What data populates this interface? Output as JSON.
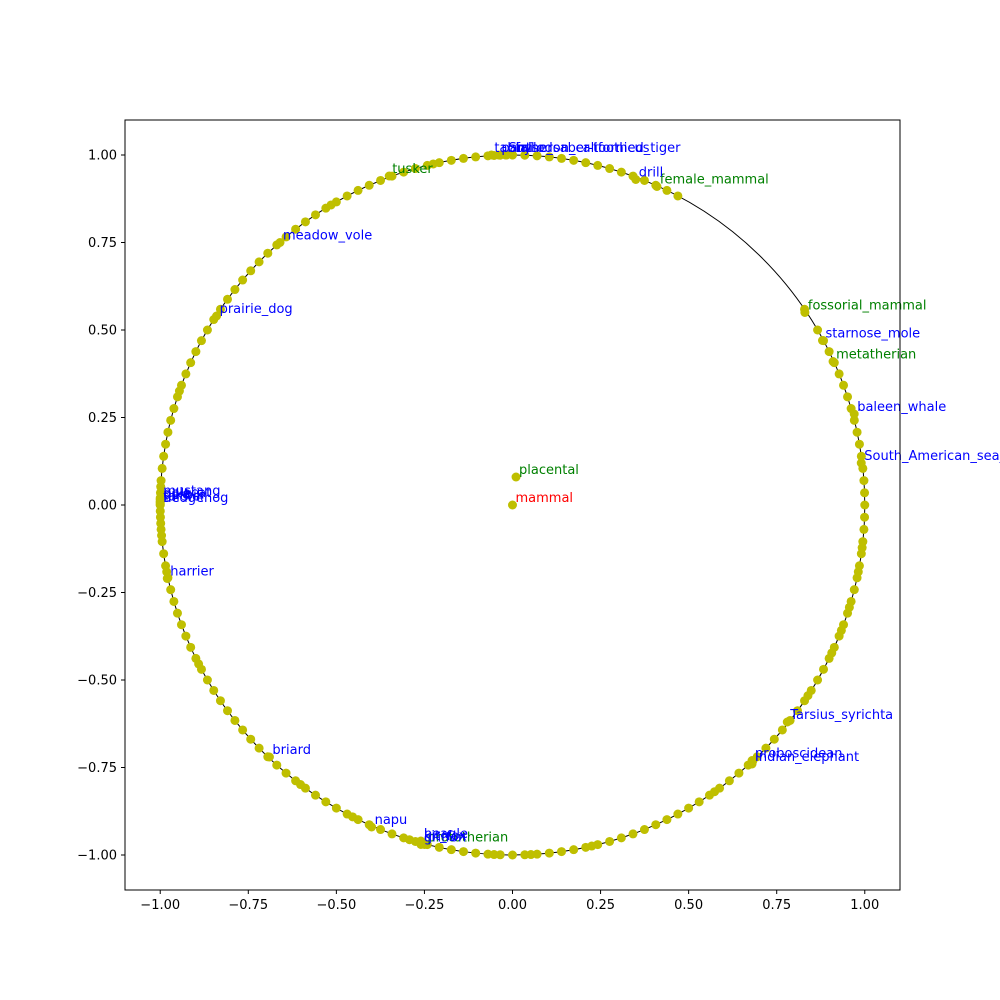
{
  "chart_data": {
    "type": "scatter",
    "title": "",
    "xlabel": "",
    "ylabel": "",
    "xlim": [
      -1.1,
      1.1
    ],
    "ylim": [
      -1.1,
      1.1
    ],
    "grid": false,
    "unit_circle": true,
    "point_color": "#bfbf00",
    "circle_color": "#000000",
    "xticks": [
      "−1.00",
      "−0.75",
      "−0.50",
      "−0.25",
      "0.00",
      "0.25",
      "0.50",
      "0.75",
      "1.00"
    ],
    "yticks": [
      "−1.00",
      "−0.75",
      "−0.50",
      "−0.25",
      "0.00",
      "0.25",
      "0.50",
      "0.75",
      "1.00"
    ],
    "xtick_values": [
      -1.0,
      -0.75,
      -0.5,
      -0.25,
      0.0,
      0.25,
      0.5,
      0.75,
      1.0
    ],
    "ytick_values": [
      -1.0,
      -0.75,
      -0.5,
      -0.25,
      0.0,
      0.25,
      0.5,
      0.75,
      1.0
    ],
    "scatter_angles_deg": [
      92,
      94,
      96,
      98,
      100,
      102,
      104,
      106,
      108,
      110,
      112,
      114,
      116,
      118,
      120,
      122,
      124,
      126,
      128,
      130,
      132,
      134,
      136,
      138,
      140,
      142,
      144,
      146,
      148,
      150,
      152,
      154,
      156,
      158,
      160,
      162,
      164,
      166,
      168,
      170,
      172,
      174,
      176,
      178,
      180,
      182,
      184,
      186,
      188,
      190,
      192,
      194,
      196,
      198,
      200,
      202,
      204,
      206,
      208,
      210,
      212,
      214,
      216,
      218,
      220,
      222,
      224,
      226,
      228,
      230,
      232,
      234,
      236,
      238,
      240,
      242,
      244,
      246,
      248,
      250,
      252,
      254,
      256,
      258,
      260,
      262,
      264,
      266,
      268,
      270,
      272,
      274,
      276,
      278,
      280,
      282,
      284,
      286,
      288,
      290,
      292,
      294,
      296,
      298,
      300,
      302,
      304,
      306,
      308,
      310,
      312,
      314,
      316,
      318,
      320,
      322,
      324,
      326,
      328,
      330,
      332,
      334,
      336,
      338,
      340,
      342,
      344,
      346,
      348,
      350,
      352,
      354,
      356,
      358,
      0,
      2,
      4,
      6,
      8,
      10,
      12,
      14,
      16,
      18,
      20,
      22,
      24,
      26,
      28,
      30,
      34,
      62,
      64,
      66,
      68,
      70,
      72,
      74,
      76,
      78,
      80,
      82,
      84,
      86,
      88,
      90,
      91,
      93,
      103,
      121,
      161,
      177,
      179,
      181,
      183,
      185,
      191,
      207,
      233,
      243,
      253,
      267,
      273,
      283,
      305,
      313,
      327,
      335,
      339,
      343,
      349,
      353
    ],
    "points": [
      {
        "label": "mammal",
        "x": 0.0,
        "y": 0.0,
        "color": "#ff0000"
      },
      {
        "label": "placental",
        "x": 0.01,
        "y": 0.08,
        "color": "#008000"
      },
      {
        "label": "tusker",
        "x": -0.35,
        "y": 0.94,
        "color": "#008000"
      },
      {
        "label": "female_mammal",
        "x": 0.41,
        "y": 0.91,
        "color": "#008000"
      },
      {
        "label": "fossorial_mammal",
        "x": 0.83,
        "y": 0.55,
        "color": "#008000"
      },
      {
        "label": "metatherian",
        "x": 0.91,
        "y": 0.41,
        "color": "#008000"
      },
      {
        "label": "prototherian",
        "x": -0.25,
        "y": -0.97,
        "color": "#008000"
      },
      {
        "label": "tabby",
        "x": -0.06,
        "y": 1.0,
        "color": "#0000ff"
      },
      {
        "label": "panther",
        "x": -0.04,
        "y": 1.0,
        "color": "#0000ff"
      },
      {
        "label": "Smilodon_californicus",
        "x": -0.02,
        "y": 1.0,
        "color": "#0000ff"
      },
      {
        "label": "false_saber-toothed_tiger",
        "x": 0.0,
        "y": 1.0,
        "color": "#0000ff"
      },
      {
        "label": "drill",
        "x": 0.35,
        "y": 0.93,
        "color": "#0000ff"
      },
      {
        "label": "meadow_vole",
        "x": -0.66,
        "y": 0.75,
        "color": "#0000ff"
      },
      {
        "label": "prairie_dog",
        "x": -0.84,
        "y": 0.54,
        "color": "#0000ff"
      },
      {
        "label": "starnose_mole",
        "x": 0.88,
        "y": 0.47,
        "color": "#0000ff"
      },
      {
        "label": "baleen_whale",
        "x": 0.97,
        "y": 0.26,
        "color": "#0000ff"
      },
      {
        "label": "South_American_sea_lion",
        "x": 0.99,
        "y": 0.12,
        "color": "#0000ff"
      },
      {
        "label": "mustang",
        "x": -1.0,
        "y": 0.02,
        "color": "#0000ff"
      },
      {
        "label": "pika",
        "x": -1.0,
        "y": 0.01,
        "color": "#0000ff"
      },
      {
        "label": "polecat",
        "x": -1.0,
        "y": 0.015,
        "color": "#0000ff"
      },
      {
        "label": "tarsier",
        "x": -1.0,
        "y": 0.005,
        "color": "#0000ff"
      },
      {
        "label": "hedgehog",
        "x": -1.0,
        "y": 0.0,
        "color": "#0000ff"
      },
      {
        "label": "gerbil",
        "x": -1.0,
        "y": 0.008,
        "color": "#0000ff"
      },
      {
        "label": "harrier",
        "x": -0.98,
        "y": -0.21,
        "color": "#0000ff"
      },
      {
        "label": "briard",
        "x": -0.69,
        "y": -0.72,
        "color": "#0000ff"
      },
      {
        "label": "Tarsius_syrichta",
        "x": 0.78,
        "y": -0.62,
        "color": "#0000ff"
      },
      {
        "label": "proboscidean",
        "x": 0.68,
        "y": -0.73,
        "color": "#0000ff"
      },
      {
        "label": "Indian_elephant",
        "x": 0.68,
        "y": -0.74,
        "color": "#0000ff"
      },
      {
        "label": "napu",
        "x": -0.4,
        "y": -0.92,
        "color": "#0000ff"
      },
      {
        "label": "griffon",
        "x": -0.26,
        "y": -0.97,
        "color": "#0000ff"
      },
      {
        "label": "kit_fox",
        "x": -0.26,
        "y": -0.965,
        "color": "#0000ff"
      },
      {
        "label": "beagle",
        "x": -0.26,
        "y": -0.96,
        "color": "#0000ff"
      }
    ]
  }
}
